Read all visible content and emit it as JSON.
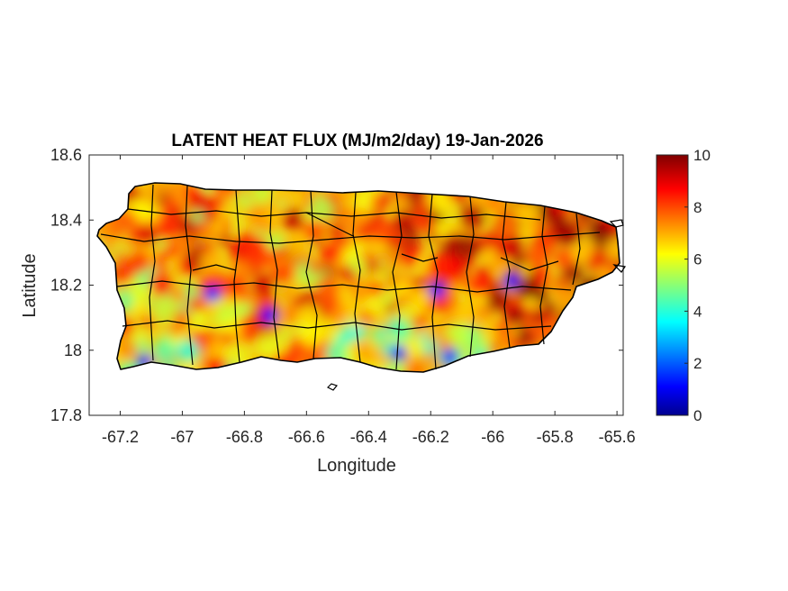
{
  "title": "LATENT HEAT FLUX (MJ/m2/day) 19-Jan-2026",
  "xlabel": "Longitude",
  "ylabel": "Latitude",
  "map": {
    "region": "Puerto Rico",
    "xlim": [
      -67.3,
      -65.58
    ],
    "ylim": [
      17.8,
      18.6
    ],
    "xticks": [
      "-67.2",
      "-67",
      "-66.8",
      "-66.6",
      "-66.4",
      "-66.2",
      "-66",
      "-65.8",
      "-65.6"
    ],
    "yticks": [
      "18.6",
      "18.4",
      "18.2",
      "18",
      "17.8"
    ],
    "colormap": "jet",
    "boundary_color": "#000000"
  },
  "colorbar": {
    "min": 0,
    "max": 10,
    "ticks": [
      "10",
      "8",
      "6",
      "4",
      "2",
      "0"
    ]
  }
}
